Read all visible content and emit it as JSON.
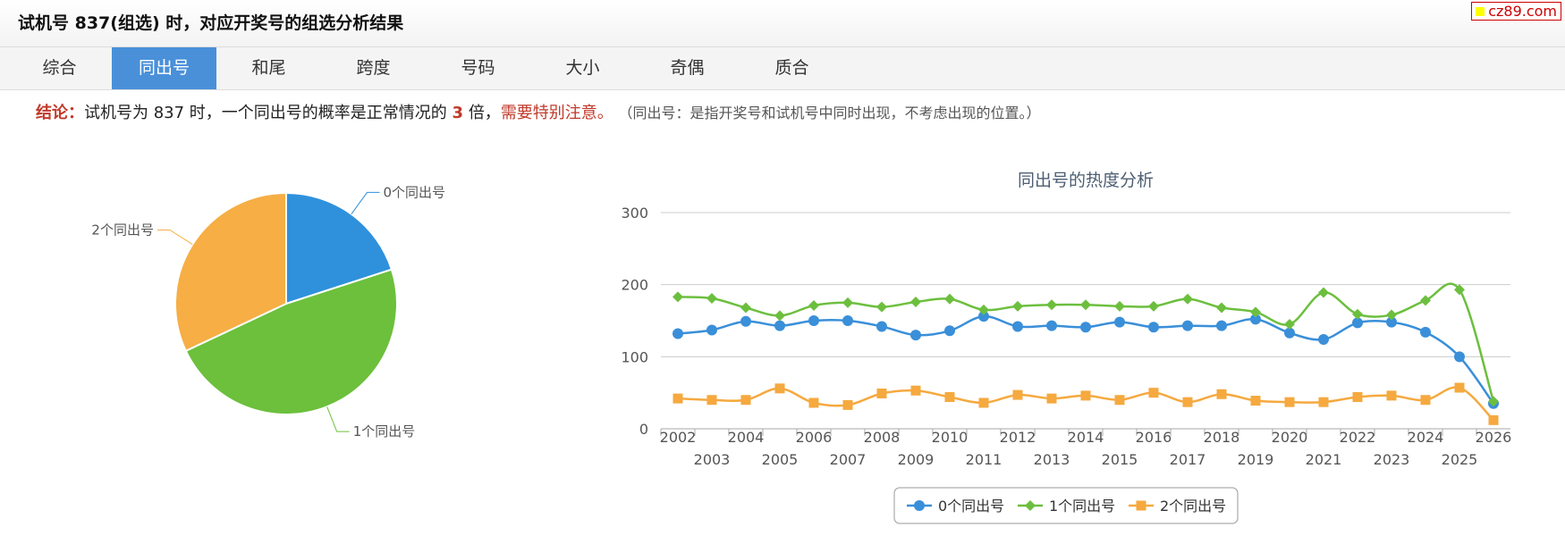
{
  "header": {
    "title": "试机号 837(组选) 时，对应开奖号的组选分析结果"
  },
  "watermark": "cz89.com",
  "tabs": [
    "综合",
    "同出号",
    "和尾",
    "跨度",
    "号码",
    "大小",
    "奇偶",
    "质合"
  ],
  "active_tab": 1,
  "conclusion": {
    "label": "结论：",
    "text": "试机号为 837 时，一个同出号的概率是正常情况的",
    "multiplier": 3,
    "unit": "倍，",
    "warning": "需要特别注意。",
    "note": "（同出号：是指开奖号和试机号中同时出现，不考虑出现的位置。）"
  },
  "chart_data": [
    {
      "type": "pie",
      "categories": [
        "0个同出号",
        "1个同出号",
        "2个同出号"
      ],
      "values": [
        20,
        48,
        32
      ],
      "colors": [
        "#2f91dc",
        "#6cc03c",
        "#f6ae45"
      ]
    },
    {
      "type": "line",
      "title": "同出号的热度分析",
      "categories": [
        "2002",
        "2003",
        "2004",
        "2005",
        "2006",
        "2007",
        "2008",
        "2009",
        "2010",
        "2011",
        "2012",
        "2013",
        "2014",
        "2015",
        "2016",
        "2017",
        "2018",
        "2019",
        "2020",
        "2021",
        "2022",
        "2023",
        "2024",
        "2025",
        "2026"
      ],
      "series": [
        {
          "name": "0个同出号",
          "color": "#3a8fd9",
          "marker": "circle",
          "values": [
            132,
            137,
            149,
            143,
            150,
            150,
            142,
            130,
            136,
            156,
            142,
            143,
            141,
            148,
            141,
            143,
            143,
            152,
            133,
            124,
            147,
            148,
            134,
            100,
            35
          ]
        },
        {
          "name": "1个同出号",
          "color": "#6cbf3e",
          "marker": "diamond",
          "values": [
            183,
            181,
            168,
            157,
            171,
            175,
            169,
            176,
            180,
            165,
            170,
            172,
            172,
            170,
            170,
            180,
            168,
            162,
            145,
            189,
            159,
            158,
            178,
            193,
            38
          ]
        },
        {
          "name": "2个同出号",
          "color": "#f5a93f",
          "marker": "square",
          "values": [
            42,
            40,
            40,
            56,
            36,
            33,
            49,
            53,
            44,
            36,
            47,
            42,
            46,
            40,
            50,
            37,
            48,
            39,
            37,
            37,
            44,
            46,
            40,
            57,
            12
          ]
        }
      ],
      "ylim": [
        0,
        300
      ],
      "yticks": [
        0,
        100,
        200,
        300
      ],
      "grid": true,
      "legend": "bottom"
    }
  ]
}
